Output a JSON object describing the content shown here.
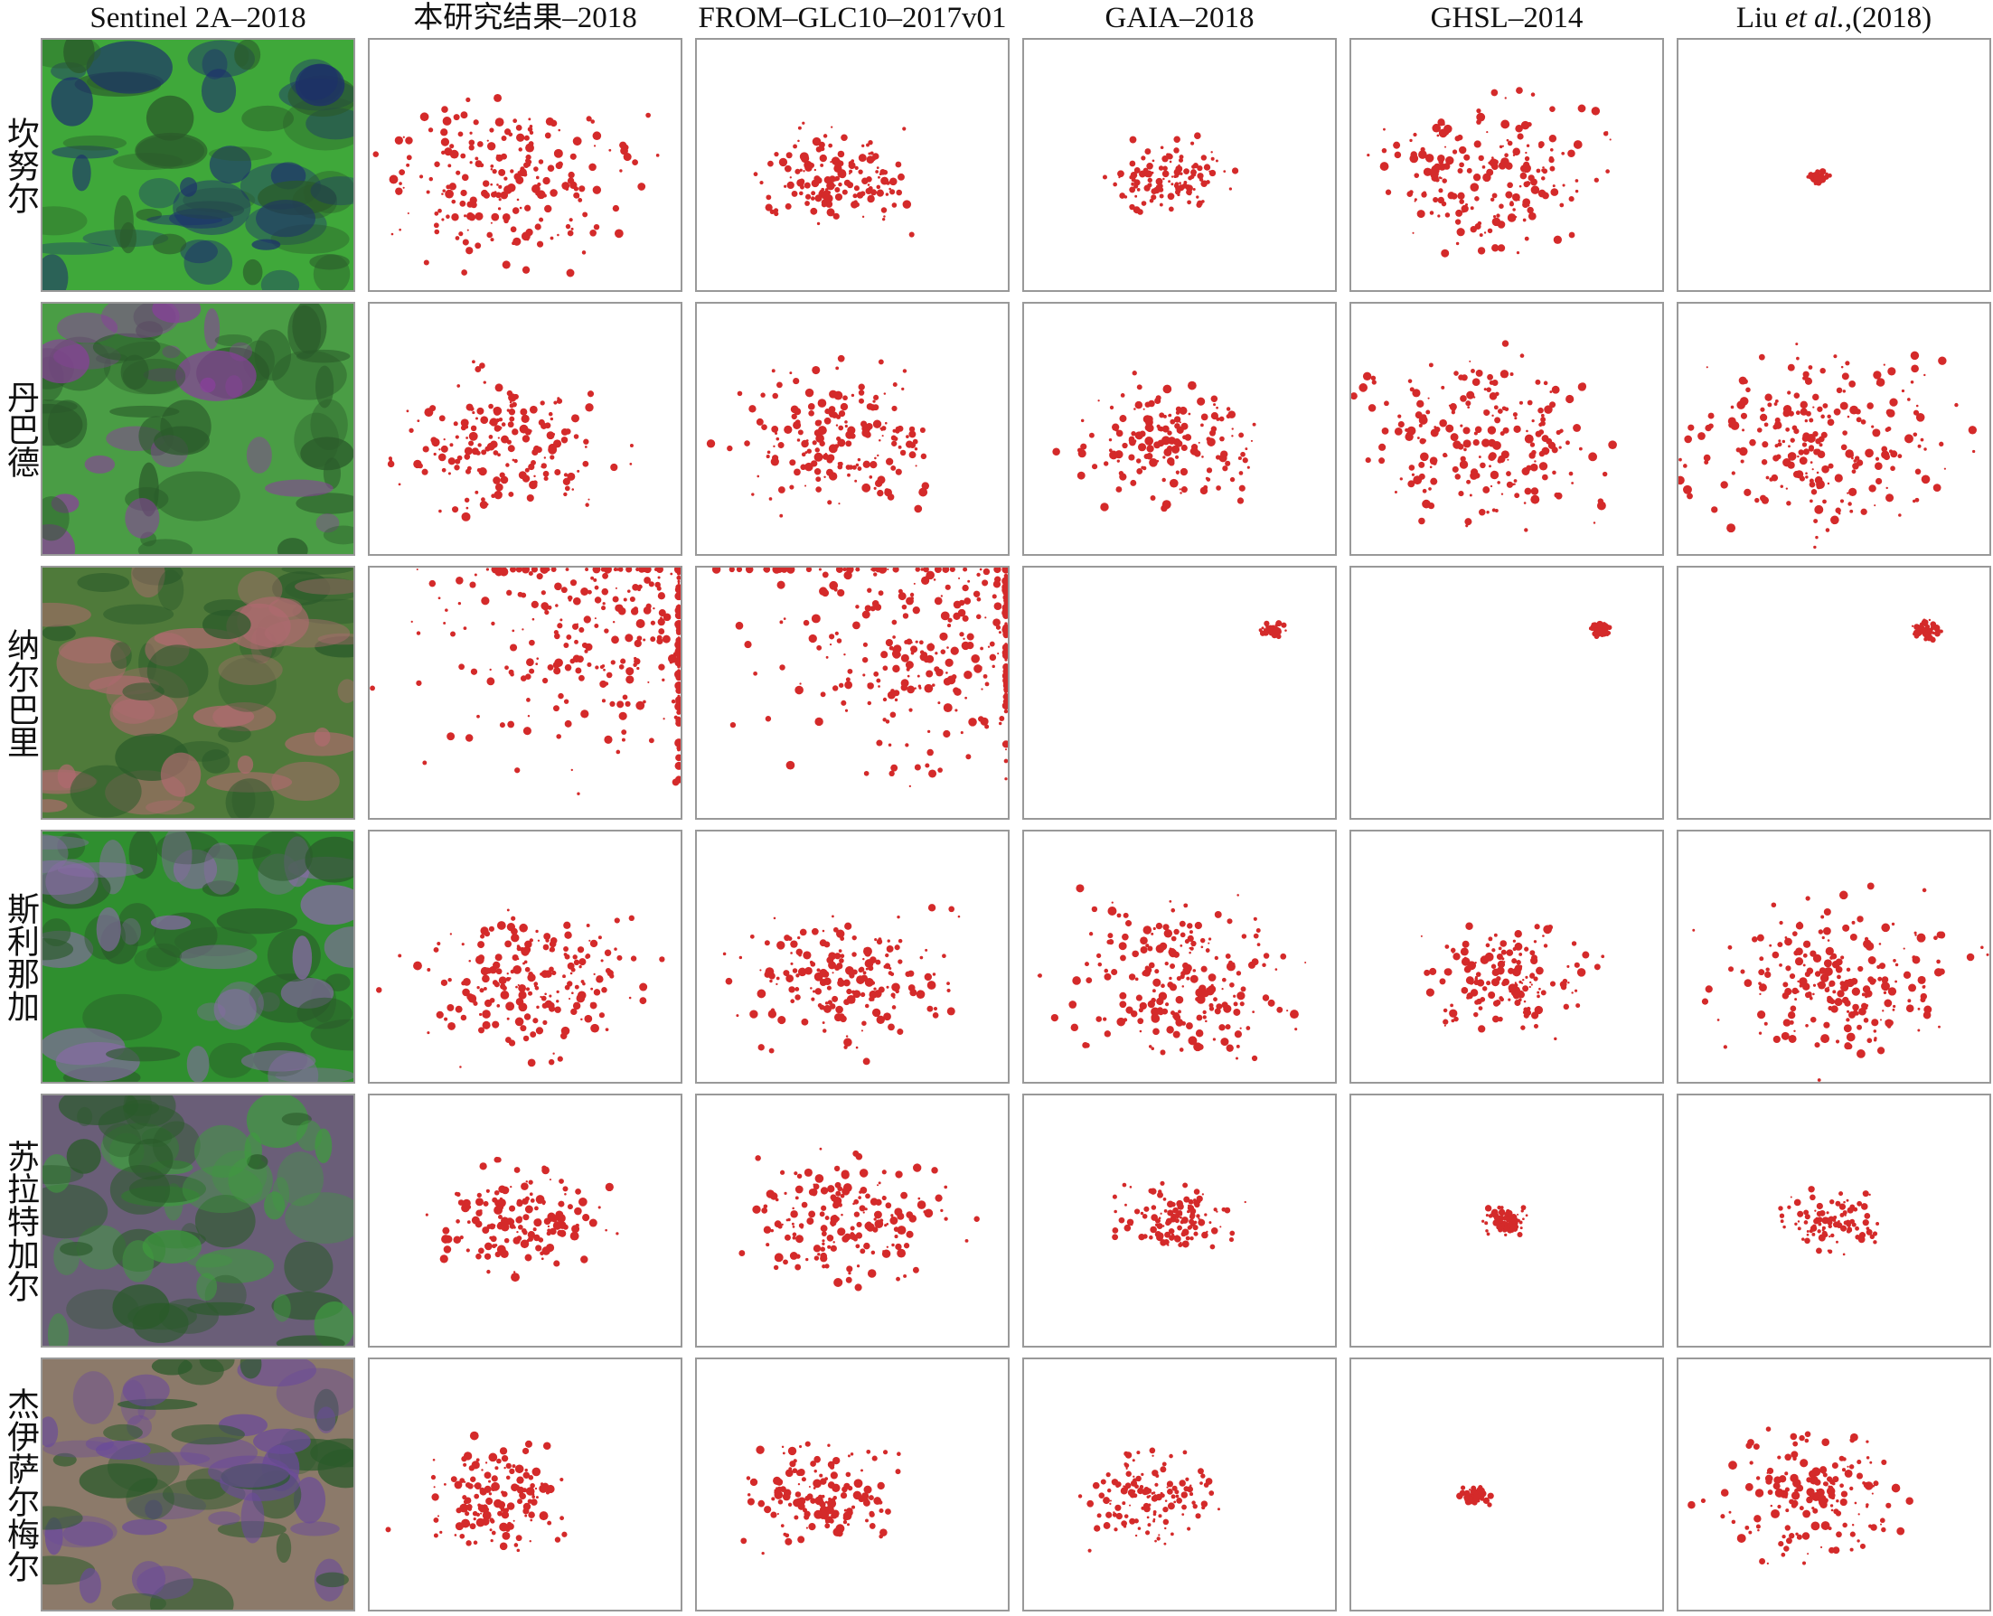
{
  "column_headers": [
    "Sentinel 2A–2018",
    "本研究结果–2018",
    "FROM–GLC10–2017v01",
    "GAIA–2018",
    "GHSL–2014",
    [
      "Liu ",
      "et al.",
      ",(2018)"
    ]
  ],
  "row_labels": [
    "坎努尔",
    "丹巴德",
    "纳尔巴里",
    "斯利那加",
    "苏拉特加尔",
    "杰伊萨尔梅尔"
  ]
}
